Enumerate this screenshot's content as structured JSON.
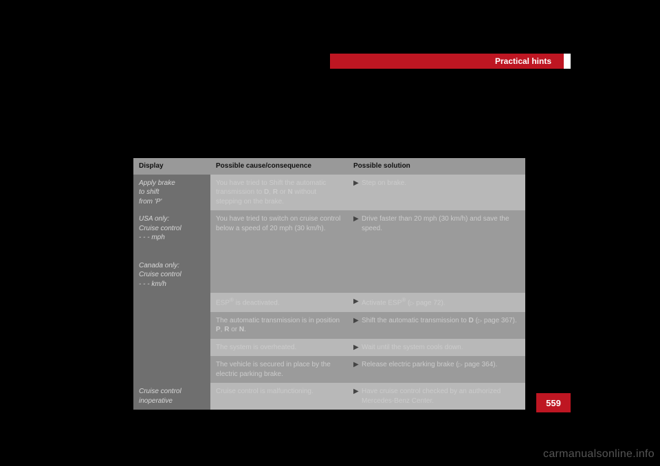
{
  "colors": {
    "red": "#be1622",
    "pageBg": "#000000",
    "headerGrey": "#999999",
    "rowGreyLight": "#b8b8b8",
    "rowGreyDark": "#9b9b9b",
    "displayCol": "#6f6f6f",
    "textLight": "#cccccc",
    "displayText": "#d8d8d8",
    "watermark": "#555555"
  },
  "header": {
    "title": "Practical hints"
  },
  "table": {
    "headers": {
      "display": "Display",
      "cause": "Possible cause/consequence",
      "solution": "Possible solution"
    },
    "rows": [
      {
        "display_lines": [
          "Apply brake",
          "to shift",
          "from 'P'"
        ],
        "cause_html": "You have tried to Shift the automatic trans­mission to <b>D</b>, <b>R</b> or <b>N</b> without stepping on the brake.",
        "solution": "Step on brake.",
        "bg": "bg2"
      },
      {
        "display_lines": [
          "USA only:",
          "Cruise control",
          "- - - mph",
          "",
          "Canada only:",
          "Cruise control",
          "- - - km/h"
        ],
        "cause_html": "You have tried to switch on cruise control below a speed of 20 mph (30 km/h).",
        "solution": "Drive faster than 20 mph (30 km/h) and save the speed.",
        "bg": "bg1",
        "tall": true
      },
      {
        "display_lines": [],
        "cause_html": "ESP<span class='trimark'>®</span> is deactivated.",
        "solution_html": "Activate ESP<span class='trimark'>®</span> (<span class='pageref'>▷</span> page 72).",
        "bg": "bg2",
        "continuation": true
      },
      {
        "display_lines": [],
        "cause_html": "The automatic transmission is in position <b>P</b>, <b>R</b> or <b>N</b>.",
        "solution_html": "Shift the automatic transmission to <b>D</b> (<span class='pageref'>▷</span> page 367).",
        "bg": "bg1",
        "continuation": true
      },
      {
        "display_lines": [],
        "cause_html": "The system is overheated.",
        "solution": "Wait until the system cools down.",
        "bg": "bg2",
        "continuation": true
      },
      {
        "display_lines": [],
        "cause_html": "The vehicle is secured in place by the elec­tric parking brake.",
        "solution_html": "Release electric parking brake (<span class='pageref'>▷</span> page 364).",
        "bg": "bg1",
        "continuation": true
      },
      {
        "display_lines": [
          "Cruise control",
          "inoperative"
        ],
        "cause_html": "Cruise control is malfunctioning.",
        "solution": "Have cruise control checked by an authorized Mercedes-Benz Center.",
        "bg": "bg2"
      }
    ]
  },
  "pageNumber": "559",
  "watermark": "carmanualsonline.info"
}
